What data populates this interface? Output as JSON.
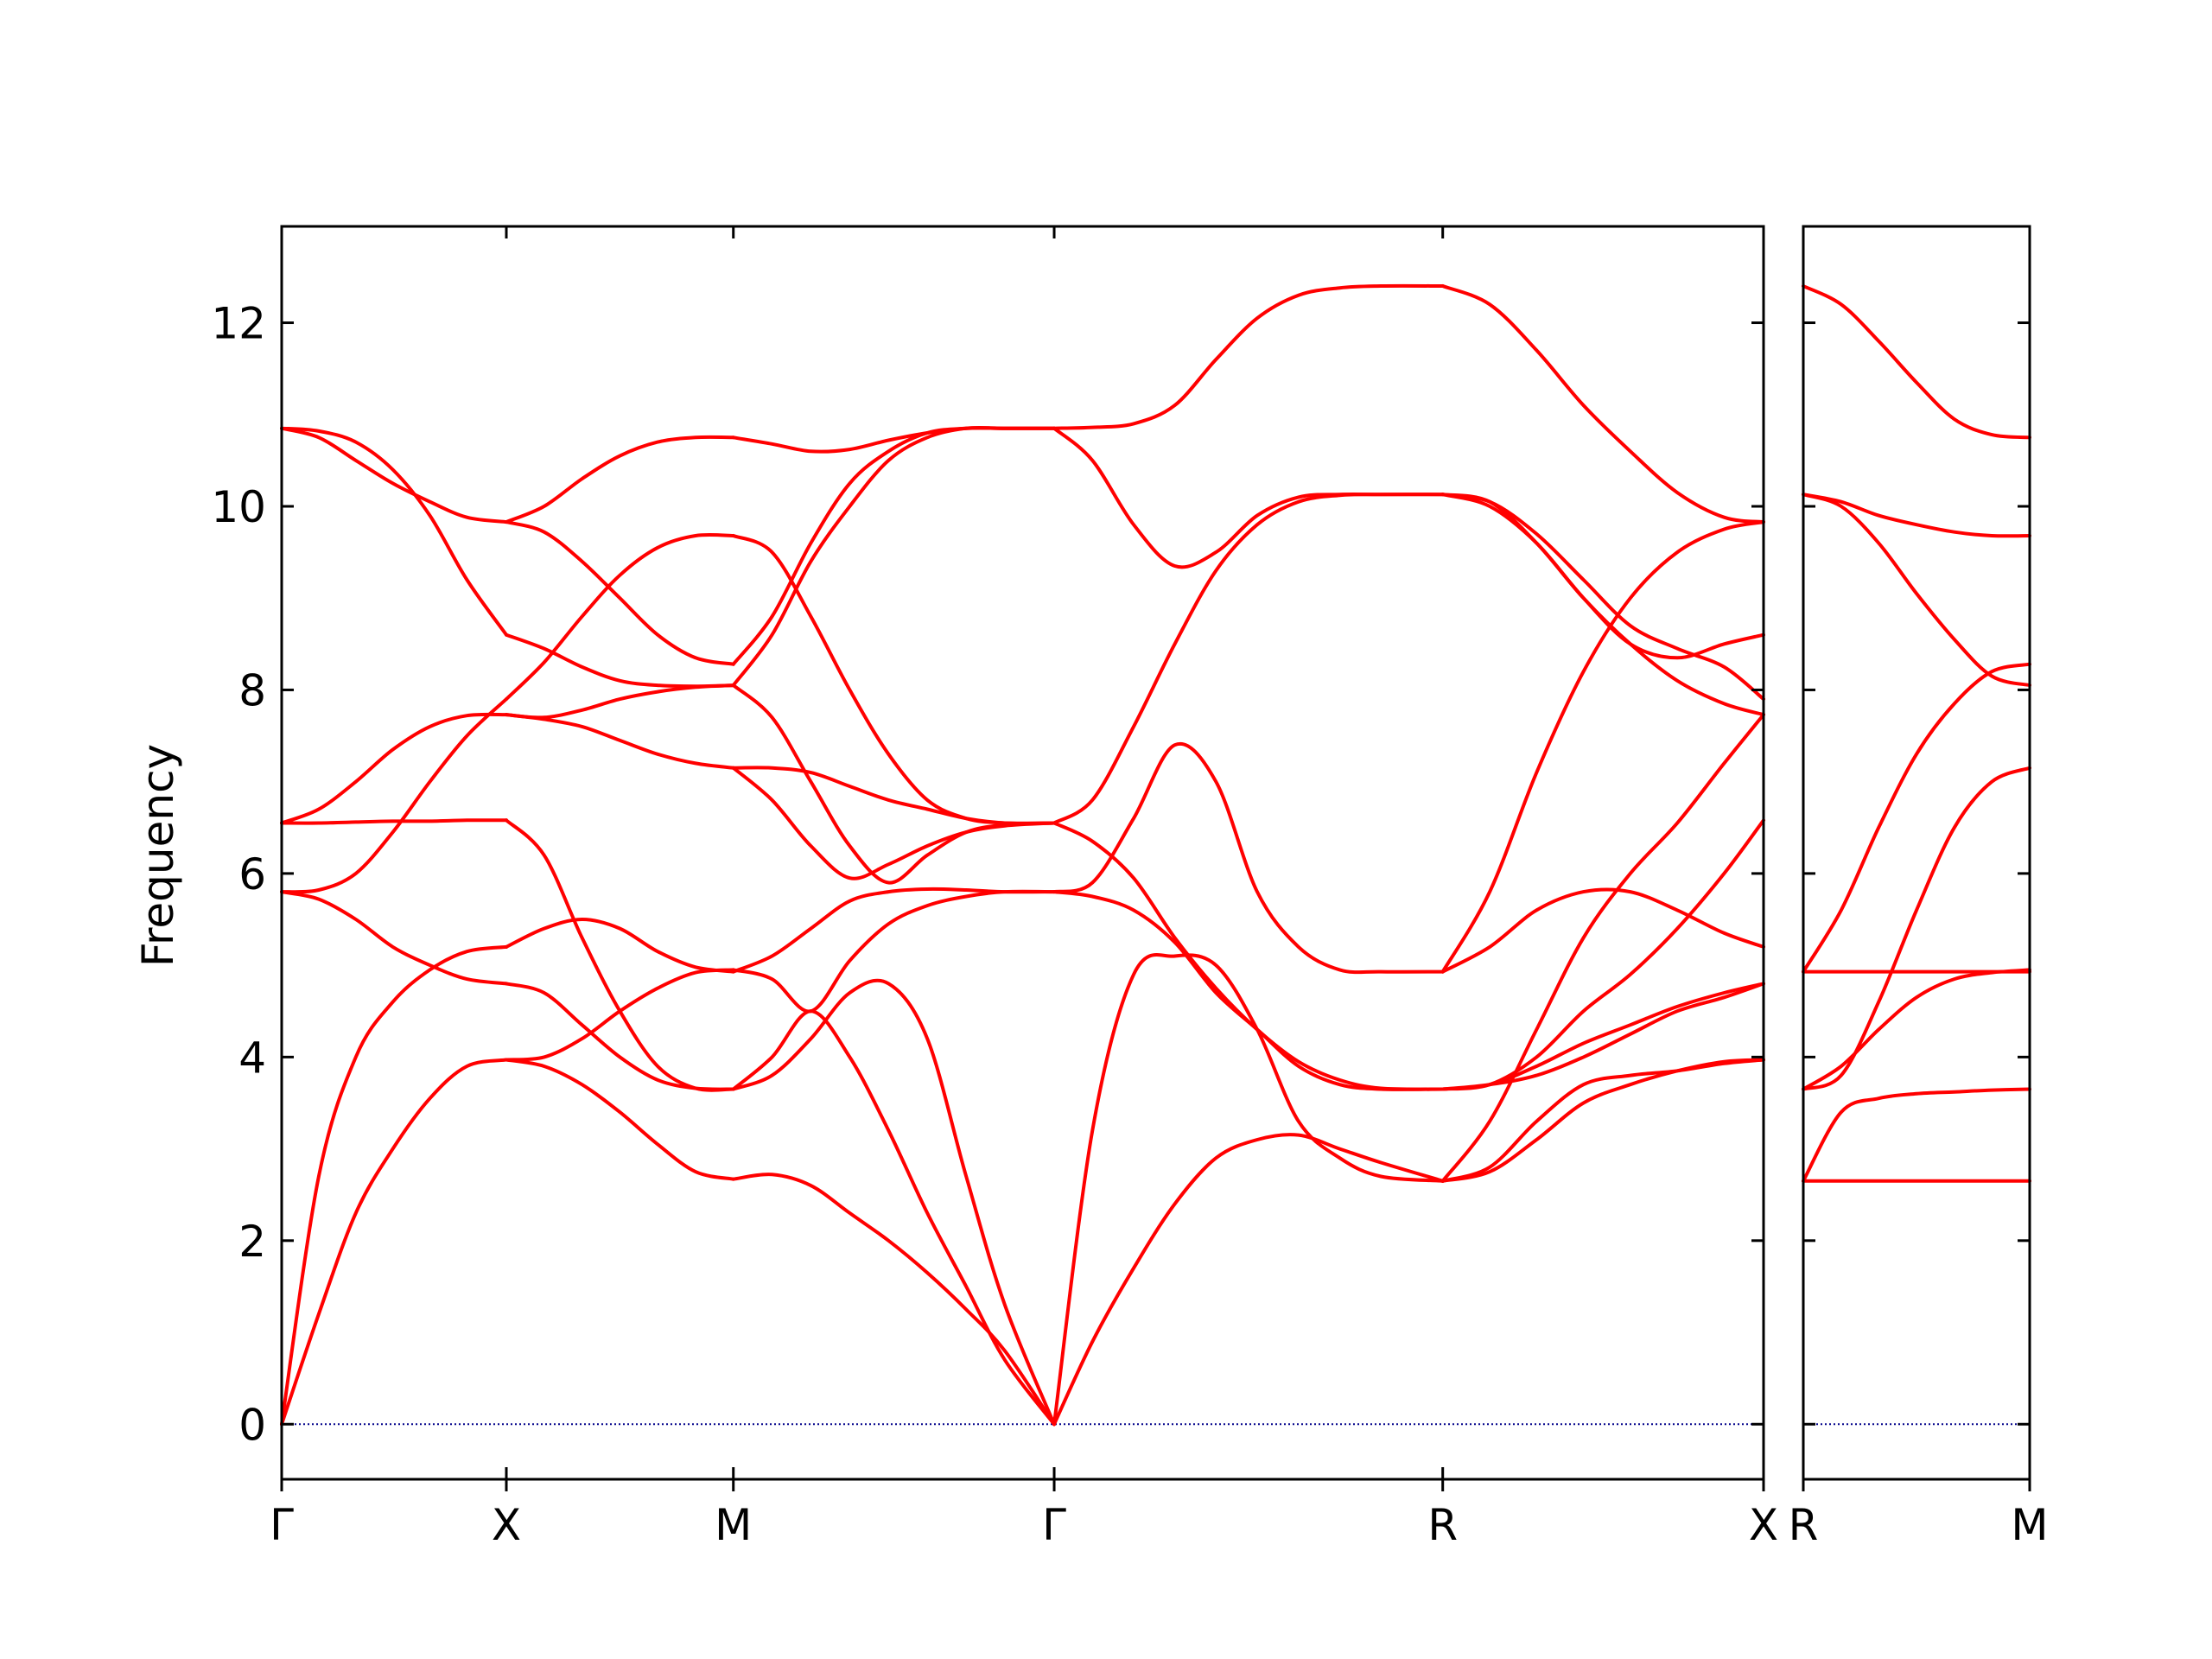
{
  "chart_data": {
    "type": "line",
    "ylabel": "Frequency",
    "ylim": [
      -0.6,
      13.05
    ],
    "yticks": [
      0,
      2,
      4,
      6,
      8,
      10,
      12
    ],
    "grid": false,
    "colors": {
      "bands": "#ff0000",
      "zero_line": "#00008b",
      "axes": "#000000"
    },
    "panels": [
      {
        "x_range": [
          0,
          1.0
        ],
        "ticks": [
          {
            "x": 0.0,
            "label": "Γ"
          },
          {
            "x": 0.1516,
            "label": "X"
          },
          {
            "x": 0.3048,
            "label": "M"
          },
          {
            "x": 0.5213,
            "label": "Γ"
          },
          {
            "x": 0.7835,
            "label": "R"
          },
          {
            "x": 1.0,
            "label": "X"
          }
        ],
        "segments": [
          {
            "from": "Γ",
            "to": "X",
            "x": [
              0,
              0.025,
              0.05,
              0.075,
              0.1,
              0.125,
              0.1516
            ],
            "bands": [
              [
                0,
                1.2,
                2.3,
                3.0,
                3.55,
                3.9,
                3.97
              ],
              [
                0,
                2.7,
                4.0,
                4.6,
                4.95,
                5.15,
                5.2
              ],
              [
                5.8,
                5.72,
                5.5,
                5.2,
                5.0,
                4.85,
                4.8
              ],
              [
                5.8,
                5.82,
                6.0,
                6.45,
                7.0,
                7.5,
                7.9
              ],
              [
                6.55,
                6.55,
                6.56,
                6.57,
                6.57,
                6.58,
                6.58
              ],
              [
                6.55,
                6.7,
                7.0,
                7.35,
                7.6,
                7.72,
                7.73
              ],
              [
                10.85,
                10.82,
                10.7,
                10.4,
                9.9,
                9.2,
                8.6
              ],
              [
                10.85,
                10.75,
                10.5,
                10.25,
                10.05,
                9.88,
                9.83
              ]
            ]
          },
          {
            "from": "X",
            "to": "M",
            "x": [
              0.1516,
              0.1771,
              0.2027,
              0.2282,
              0.2537,
              0.2793,
              0.3048
            ],
            "bands": [
              [
                3.97,
                3.9,
                3.7,
                3.4,
                3.05,
                2.75,
                2.67
              ],
              [
                3.97,
                4.0,
                4.2,
                4.5,
                4.75,
                4.92,
                4.95
              ],
              [
                4.8,
                4.7,
                4.35,
                4.0,
                3.75,
                3.66,
                3.65
              ],
              [
                5.2,
                5.4,
                5.5,
                5.4,
                5.15,
                4.98,
                4.93
              ],
              [
                6.58,
                6.2,
                5.3,
                4.5,
                3.9,
                3.66,
                3.65
              ],
              [
                7.73,
                7.68,
                7.6,
                7.45,
                7.3,
                7.2,
                7.15
              ],
              [
                7.73,
                7.7,
                7.78,
                7.9,
                7.98,
                8.03,
                8.05
              ],
              [
                7.9,
                8.3,
                8.8,
                9.25,
                9.55,
                9.68,
                9.68
              ],
              [
                8.6,
                8.45,
                8.25,
                8.1,
                8.05,
                8.04,
                8.05
              ],
              [
                9.83,
                9.72,
                9.4,
                9.0,
                8.6,
                8.35,
                8.28
              ],
              [
                9.83,
                10.0,
                10.3,
                10.55,
                10.7,
                10.75,
                10.75
              ]
            ]
          },
          {
            "from": "M",
            "to": "Γ",
            "x": [
              0.3048,
              0.3309,
              0.3571,
              0.3833,
              0.4095,
              0.4357,
              0.4619,
              0.488,
              0.5213
            ],
            "bands": [
              [
                2.67,
                2.72,
                2.6,
                2.3,
                2.0,
                1.65,
                1.25,
                0.8,
                0
              ],
              [
                3.65,
                3.8,
                4.2,
                4.7,
                4.8,
                4.2,
                2.7,
                1.3,
                0
              ],
              [
                3.65,
                4.0,
                4.5,
                4.0,
                3.2,
                2.3,
                1.5,
                0.7,
                0
              ],
              [
                4.95,
                4.85,
                4.5,
                5.05,
                5.45,
                5.65,
                5.75,
                5.8,
                5.8
              ],
              [
                4.93,
                5.1,
                5.4,
                5.7,
                5.8,
                5.83,
                5.82,
                5.8,
                5.8
              ],
              [
                7.15,
                6.8,
                6.3,
                5.95,
                6.1,
                6.3,
                6.45,
                6.52,
                6.55
              ],
              [
                8.05,
                7.7,
                7.0,
                6.3,
                5.9,
                6.2,
                6.45,
                6.53,
                6.55
              ],
              [
                7.15,
                7.15,
                7.1,
                6.95,
                6.8,
                6.7,
                6.6,
                6.55,
                6.55
              ],
              [
                9.68,
                9.5,
                8.8,
                8.0,
                7.3,
                6.8,
                6.6,
                6.55,
                6.55
              ],
              [
                8.28,
                8.8,
                9.6,
                10.25,
                10.6,
                10.8,
                10.85,
                10.85,
                10.85
              ],
              [
                8.05,
                8.6,
                9.4,
                10.0,
                10.5,
                10.75,
                10.85,
                10.85,
                10.85
              ],
              [
                10.75,
                10.68,
                10.6,
                10.62,
                10.72,
                10.8,
                10.85,
                10.85,
                10.85
              ]
            ]
          },
          {
            "from": "Γ",
            "to": "R",
            "x": [
              0.5213,
              0.5471,
              0.5749,
              0.6027,
              0.6305,
              0.6583,
              0.6862,
              0.714,
              0.7418,
              0.7835
            ],
            "bands": [
              [
                0,
                0.9,
                1.7,
                2.4,
                2.9,
                3.1,
                3.15,
                3.0,
                2.85,
                2.65
              ],
              [
                0,
                3.2,
                4.9,
                5.1,
                5.0,
                4.3,
                3.3,
                2.9,
                2.7,
                2.65
              ],
              [
                5.8,
                5.75,
                5.6,
                5.25,
                4.7,
                4.3,
                3.9,
                3.7,
                3.65,
                3.65
              ],
              [
                6.55,
                6.35,
                5.95,
                5.3,
                4.75,
                4.3,
                3.95,
                3.75,
                3.66,
                3.65
              ],
              [
                5.8,
                5.9,
                6.6,
                7.4,
                7.0,
                5.8,
                5.2,
                4.95,
                4.93,
                4.93
              ],
              [
                6.55,
                6.8,
                7.6,
                8.5,
                9.3,
                9.8,
                10.05,
                10.12,
                10.13,
                10.13
              ],
              [
                10.85,
                10.5,
                9.8,
                9.35,
                9.5,
                9.9,
                10.1,
                10.13,
                10.13,
                10.13
              ],
              [
                10.85,
                10.86,
                10.9,
                11.1,
                11.6,
                12.05,
                12.3,
                12.38,
                12.4,
                12.4
              ]
            ]
          },
          {
            "from": "R",
            "to": "X",
            "x": [
              0.7835,
              0.8152,
              0.8468,
              0.8785,
              0.9101,
              0.9418,
              0.9734,
              1.0
            ],
            "bands": [
              [
                2.65,
                2.75,
                3.1,
                3.5,
                3.7,
                3.85,
                3.95,
                3.97
              ],
              [
                2.65,
                2.8,
                3.3,
                3.7,
                3.8,
                3.85,
                3.93,
                3.97
              ],
              [
                2.65,
                3.3,
                4.3,
                5.3,
                6.0,
                6.55,
                7.2,
                7.73
              ],
              [
                3.65,
                3.7,
                4.0,
                4.5,
                4.9,
                5.4,
                6.0,
                6.58
              ],
              [
                3.65,
                3.7,
                3.9,
                4.15,
                4.35,
                4.55,
                4.7,
                4.8
              ],
              [
                3.65,
                3.7,
                3.8,
                4.0,
                4.25,
                4.5,
                4.65,
                4.8
              ],
              [
                4.93,
                5.2,
                5.6,
                5.8,
                5.8,
                5.6,
                5.35,
                5.2
              ],
              [
                4.93,
                5.8,
                7.1,
                8.2,
                9.0,
                9.5,
                9.75,
                9.83
              ],
              [
                10.13,
                10.05,
                9.6,
                9.0,
                8.5,
                8.35,
                8.5,
                8.6
              ],
              [
                10.13,
                10.05,
                9.7,
                9.2,
                8.7,
                8.45,
                8.25,
                7.9
              ],
              [
                10.13,
                10.0,
                9.6,
                9.0,
                8.5,
                8.1,
                7.85,
                7.73
              ],
              [
                12.4,
                12.2,
                11.7,
                11.1,
                10.6,
                10.15,
                9.88,
                9.83
              ]
            ]
          }
        ]
      },
      {
        "x_range": [
          0,
          1.0
        ],
        "ticks": [
          {
            "x": 0.0,
            "label": "R"
          },
          {
            "x": 1.0,
            "label": "M"
          }
        ],
        "segments": [
          {
            "from": "R",
            "to": "M",
            "x": [
              0,
              0.167,
              0.333,
              0.5,
              0.667,
              0.833,
              1.0
            ],
            "bands": [
              [
                2.65,
                2.65,
                2.65,
                2.65,
                2.65,
                2.65,
                2.65
              ],
              [
                2.65,
                3.4,
                3.55,
                3.6,
                3.62,
                3.64,
                3.65
              ],
              [
                3.65,
                3.9,
                4.3,
                4.65,
                4.85,
                4.92,
                4.95
              ],
              [
                3.65,
                3.8,
                4.6,
                5.6,
                6.5,
                7.0,
                7.15
              ],
              [
                4.93,
                4.93,
                4.93,
                4.93,
                4.93,
                4.93,
                4.93
              ],
              [
                4.93,
                5.6,
                6.5,
                7.3,
                7.85,
                8.2,
                8.28
              ],
              [
                10.13,
                10.0,
                9.6,
                9.05,
                8.55,
                8.15,
                8.05
              ],
              [
                10.13,
                10.05,
                9.9,
                9.8,
                9.72,
                9.68,
                9.68
              ],
              [
                12.4,
                12.2,
                11.8,
                11.35,
                10.95,
                10.78,
                10.75
              ]
            ]
          }
        ]
      }
    ]
  }
}
